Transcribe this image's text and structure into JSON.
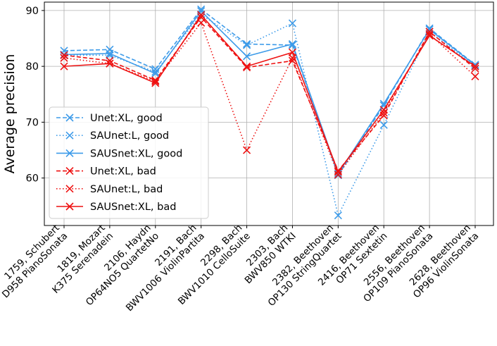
{
  "chart_data": {
    "type": "line",
    "title": "",
    "xlabel": "",
    "ylabel": "Average precision",
    "ylim": [
      51.5,
      91.5
    ],
    "yticks": [
      60,
      70,
      80,
      90
    ],
    "grid": true,
    "legend_position": "center-left",
    "categories": [
      [
        "1759, Schubert",
        "D958 PianoSonata"
      ],
      [
        "1819, Mozart",
        "K375 Serenadein"
      ],
      [
        "2106, Haydn",
        "OP64NO5 QuartetNo"
      ],
      [
        "2191, Bach",
        "BWV1006 ViolinPartita"
      ],
      [
        "2298, Bach",
        "BWV1010 CelloSuite"
      ],
      [
        "2303, Bach",
        "BWV850 WTKI"
      ],
      [
        "2382, Beethoven",
        "OP130 StringQuartet"
      ],
      [
        "2416, Beethoven",
        "OP71 Sextetin"
      ],
      [
        "2556, Beethoven",
        "OP109 PianoSonata"
      ],
      [
        "2628, Beethoven",
        "OP96 ViolinSonata"
      ]
    ],
    "series": [
      {
        "name": "Unet:XL, good",
        "color": "#3d9be9",
        "dash": "dashed",
        "values": [
          82.8,
          83.0,
          79.5,
          90.2,
          84.0,
          83.8,
          60.5,
          73.0,
          86.8,
          80.3
        ]
      },
      {
        "name": "SAUnet:L, good",
        "color": "#3d9be9",
        "dash": "dotted",
        "values": [
          82.0,
          82.0,
          79.0,
          89.3,
          83.8,
          87.7,
          53.3,
          69.5,
          86.2,
          80.0
        ]
      },
      {
        "name": "SAUSnet:XL, good",
        "color": "#3d9be9",
        "dash": "solid",
        "values": [
          82.1,
          82.3,
          78.7,
          89.9,
          81.8,
          84.0,
          60.8,
          73.3,
          86.6,
          80.2
        ]
      },
      {
        "name": "Unet:XL, bad",
        "color": "#ee1111",
        "dash": "dashed",
        "values": [
          82.0,
          81.0,
          77.5,
          88.8,
          79.8,
          81.0,
          61.3,
          71.2,
          86.2,
          79.6
        ]
      },
      {
        "name": "SAUnet:L, bad",
        "color": "#ee1111",
        "dash": "dotted",
        "values": [
          81.5,
          80.5,
          77.3,
          87.8,
          65.0,
          81.5,
          60.6,
          71.7,
          85.8,
          78.2
        ]
      },
      {
        "name": "SAUSnet:XL, bad",
        "color": "#ee1111",
        "dash": "solid",
        "values": [
          80.0,
          80.5,
          77.0,
          89.2,
          80.0,
          82.5,
          61.1,
          72.2,
          85.5,
          80.0
        ]
      }
    ]
  }
}
